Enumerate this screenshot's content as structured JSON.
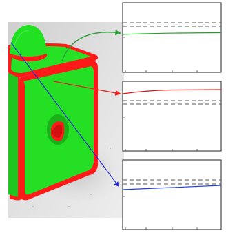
{
  "scene": {
    "object": "rounded-cube",
    "surface_color": "#1fe11f",
    "edge_color": "#ff0000",
    "floor_color": "#e6e6e6"
  },
  "arrows": [
    {
      "name": "green-arrow",
      "color": "#2e9e3a"
    },
    {
      "name": "red-arrow",
      "color": "#e52222"
    },
    {
      "name": "blue-arrow",
      "color": "#2a2ad6"
    }
  ],
  "plots": [
    {
      "name": "top-plot",
      "line_color": "#1aa61a"
    },
    {
      "name": "middle-plot",
      "line_color": "#e01010"
    },
    {
      "name": "bottom-plot",
      "line_color": "#1f3fe0"
    }
  ]
}
